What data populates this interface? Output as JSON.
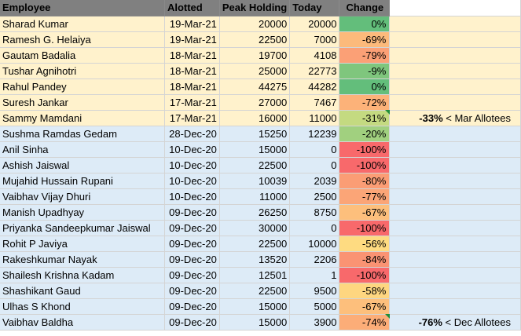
{
  "header": {
    "employee": "Employee",
    "alotted": "Alotted",
    "peak": "Peak Holding",
    "today": "Today",
    "change": "Change"
  },
  "colors": {
    "header_bg": "#808080",
    "mar_group_bg": "#fff2cc",
    "dec_group_bg": "#ddebf7",
    "scale_green": "#63be7b",
    "scale_yellow": "#ffeb84",
    "scale_red": "#f8696b",
    "note_marker": "#1e8c3a"
  },
  "rows": [
    {
      "name": "Sharad Kumar",
      "date": "19-Mar-21",
      "peak": "20000",
      "today": "20000",
      "change": "0%",
      "change_value": 0,
      "group": "mar"
    },
    {
      "name": "Ramesh G. Helaiya",
      "date": "19-Mar-21",
      "peak": "22500",
      "today": "7000",
      "change": "-69%",
      "change_value": -69,
      "group": "mar"
    },
    {
      "name": "Gautam Badalia",
      "date": "18-Mar-21",
      "peak": "19700",
      "today": "4108",
      "change": "-79%",
      "change_value": -79,
      "group": "mar"
    },
    {
      "name": "Tushar Agnihotri",
      "date": "18-Mar-21",
      "peak": "25000",
      "today": "22773",
      "change": "-9%",
      "change_value": -9,
      "group": "mar"
    },
    {
      "name": "Rahul Pandey",
      "date": "18-Mar-21",
      "peak": "44275",
      "today": "44282",
      "change": "0%",
      "change_value": 0,
      "group": "mar"
    },
    {
      "name": "Suresh Jankar",
      "date": "17-Mar-21",
      "peak": "27000",
      "today": "7467",
      "change": "-72%",
      "change_value": -72,
      "group": "mar"
    },
    {
      "name": "Sammy Mamdani",
      "date": "17-Mar-21",
      "peak": "16000",
      "today": "11000",
      "change": "-31%",
      "change_value": -31,
      "group": "mar",
      "note_pct": "-33%",
      "note_text": " < Mar Allotees"
    },
    {
      "name": "Sushma Ramdas Gedam",
      "date": "28-Dec-20",
      "peak": "15250",
      "today": "12239",
      "change": "-20%",
      "change_value": -20,
      "group": "dec"
    },
    {
      "name": "Anil Sinha",
      "date": "10-Dec-20",
      "peak": "15000",
      "today": "0",
      "change": "-100%",
      "change_value": -100,
      "group": "dec"
    },
    {
      "name": "Ashish Jaiswal",
      "date": "10-Dec-20",
      "peak": "22500",
      "today": "0",
      "change": "-100%",
      "change_value": -100,
      "group": "dec"
    },
    {
      "name": "Mujahid Hussain Rupani",
      "date": "10-Dec-20",
      "peak": "10039",
      "today": "2039",
      "change": "-80%",
      "change_value": -80,
      "group": "dec"
    },
    {
      "name": "Vaibhav Vijay Dhuri",
      "date": "10-Dec-20",
      "peak": "11000",
      "today": "2500",
      "change": "-77%",
      "change_value": -77,
      "group": "dec"
    },
    {
      "name": "Manish Upadhyay",
      "date": "09-Dec-20",
      "peak": "26250",
      "today": "8750",
      "change": "-67%",
      "change_value": -67,
      "group": "dec"
    },
    {
      "name": "Priyanka Sandeepkumar Jaiswal",
      "date": "09-Dec-20",
      "peak": "30000",
      "today": "0",
      "change": "-100%",
      "change_value": -100,
      "group": "dec"
    },
    {
      "name": "Rohit P Javiya",
      "date": "09-Dec-20",
      "peak": "22500",
      "today": "10000",
      "change": "-56%",
      "change_value": -56,
      "group": "dec"
    },
    {
      "name": "Rakeshkumar Nayak",
      "date": "09-Dec-20",
      "peak": "13520",
      "today": "2206",
      "change": "-84%",
      "change_value": -84,
      "group": "dec"
    },
    {
      "name": "Shailesh Krishna Kadam",
      "date": "09-Dec-20",
      "peak": "12501",
      "today": "1",
      "change": "-100%",
      "change_value": -100,
      "group": "dec"
    },
    {
      "name": "Shashikant Gaud",
      "date": "09-Dec-20",
      "peak": "22500",
      "today": "9500",
      "change": "-58%",
      "change_value": -58,
      "group": "dec"
    },
    {
      "name": "Ulhas S Khond",
      "date": "09-Dec-20",
      "peak": "15000",
      "today": "5000",
      "change": "-67%",
      "change_value": -67,
      "group": "dec"
    },
    {
      "name": "Vaibhav Baldha",
      "date": "09-Dec-20",
      "peak": "15000",
      "today": "3900",
      "change": "-74%",
      "change_value": -74,
      "group": "dec",
      "note_pct": "-76%",
      "note_text": " < Dec Allotees"
    }
  ]
}
